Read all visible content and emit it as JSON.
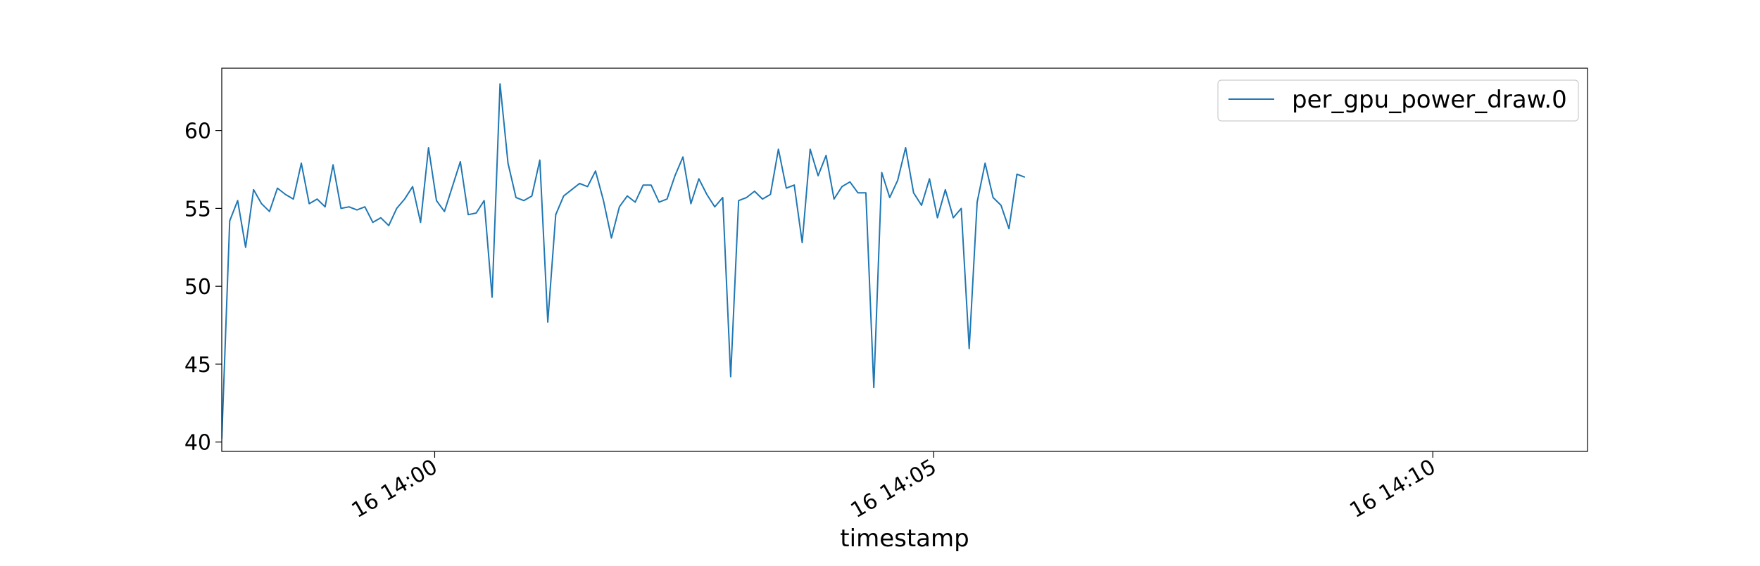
{
  "chart_data": {
    "type": "line",
    "xlabel": "timestamp",
    "ylabel": "",
    "x_start": "16 13:57:52",
    "x_step_seconds": 4.78,
    "xlim": [
      "16 13:57:52",
      "16 14:11:33"
    ],
    "ylim": [
      39.4,
      64.0
    ],
    "x_ticks": [
      {
        "time": "16 14:00",
        "label": "16 14:00"
      },
      {
        "time": "16 14:05",
        "label": "16 14:05"
      },
      {
        "time": "16 14:10",
        "label": "16 14:10"
      }
    ],
    "y_ticks": [
      40,
      45,
      50,
      55,
      60
    ],
    "grid": false,
    "legend_position": "top-right",
    "series": [
      {
        "name": "per_gpu_power_draw.0",
        "color": "#1f77b4",
        "values": [
          40.2,
          54.2,
          55.5,
          52.5,
          56.2,
          55.3,
          54.8,
          56.3,
          55.9,
          55.6,
          57.9,
          55.3,
          55.6,
          55.1,
          57.8,
          55.0,
          55.1,
          54.9,
          55.1,
          54.1,
          54.4,
          53.9,
          55.0,
          55.6,
          56.4,
          54.1,
          58.9,
          55.5,
          54.8,
          56.4,
          58.0,
          54.6,
          54.7,
          55.5,
          49.3,
          63.0,
          57.9,
          55.7,
          55.5,
          55.8,
          58.1,
          47.7,
          54.6,
          55.8,
          56.2,
          56.6,
          56.4,
          57.4,
          55.5,
          53.1,
          55.1,
          55.8,
          55.4,
          56.5,
          56.5,
          55.4,
          55.6,
          57.1,
          58.3,
          55.3,
          56.9,
          55.9,
          55.1,
          55.7,
          44.2,
          55.5,
          55.7,
          56.1,
          55.6,
          55.9,
          58.8,
          56.3,
          56.5,
          52.8,
          58.8,
          57.1,
          58.4,
          55.6,
          56.4,
          56.7,
          56.0,
          56.0,
          43.5,
          57.3,
          55.7,
          56.8,
          58.9,
          56.0,
          55.2,
          56.9,
          54.4,
          56.2,
          54.4,
          55.0,
          46.0,
          55.4,
          57.9,
          55.7,
          55.2,
          53.7,
          57.2,
          57.0
        ]
      }
    ]
  }
}
